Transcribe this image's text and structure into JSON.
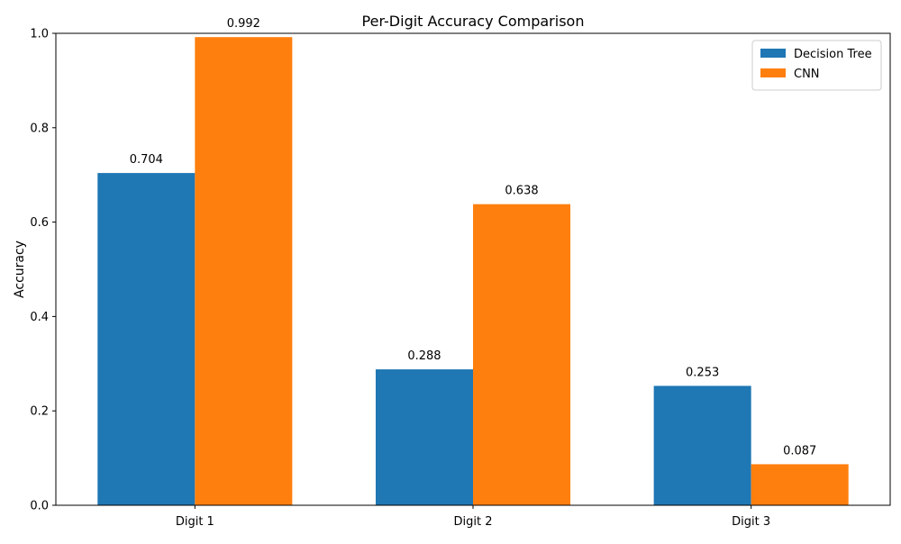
{
  "chart_data": {
    "type": "bar",
    "title": "Per-Digit Accuracy Comparison",
    "xlabel": "",
    "ylabel": "Accuracy",
    "categories": [
      "Digit 1",
      "Digit 2",
      "Digit 3"
    ],
    "series": [
      {
        "name": "Decision Tree",
        "color": "#1f77b4",
        "values": [
          0.704,
          0.288,
          0.253
        ],
        "labels": [
          "0.704",
          "0.288",
          "0.253"
        ]
      },
      {
        "name": "CNN",
        "color": "#ff7f0e",
        "values": [
          0.992,
          0.638,
          0.087
        ],
        "labels": [
          "0.992",
          "0.638",
          "0.087"
        ]
      }
    ],
    "ylim": [
      0,
      1.0
    ],
    "yticks": [
      0.0,
      0.2,
      0.4,
      0.6,
      0.8,
      1.0
    ],
    "ytick_labels": [
      "0.0",
      "0.2",
      "0.4",
      "0.6",
      "0.8",
      "1.0"
    ],
    "grid": false,
    "legend_position": "top-right"
  }
}
